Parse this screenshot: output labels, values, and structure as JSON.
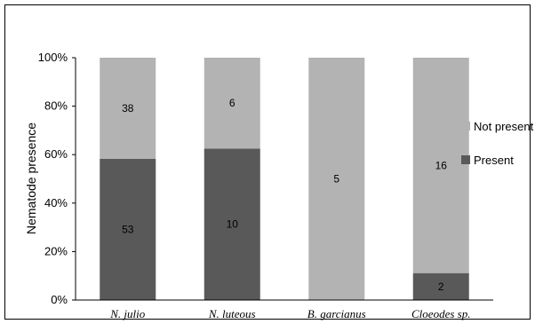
{
  "chart_data": {
    "type": "bar",
    "stacked": true,
    "normalized": true,
    "categories": [
      "N. julio",
      "N. luteous",
      "B. garcianus",
      "Cloeodes sp."
    ],
    "series": [
      {
        "name": "Present",
        "values": [
          53,
          10,
          0,
          2
        ],
        "color": "#595959"
      },
      {
        "name": "Not present",
        "values": [
          38,
          6,
          5,
          16
        ],
        "color": "#b3b3b3"
      }
    ],
    "xlabel": "",
    "ylabel": "Nematode presence",
    "ylim": [
      0,
      100
    ],
    "yticks": [
      "0%",
      "20%",
      "40%",
      "60%",
      "80%",
      "100%"
    ],
    "legend": "right",
    "grid": false
  }
}
